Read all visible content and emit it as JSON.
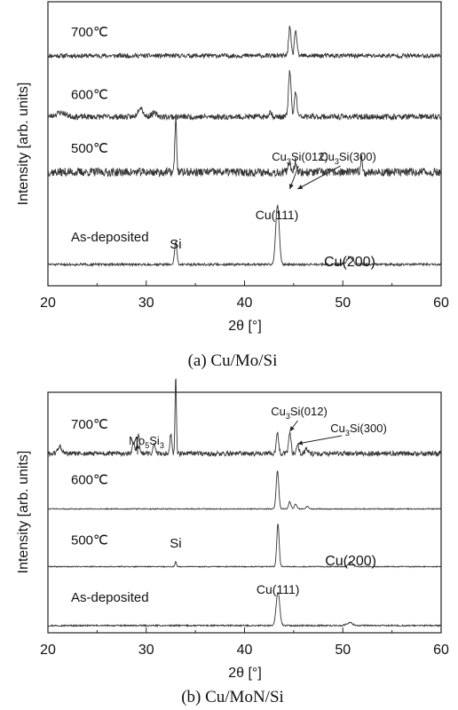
{
  "chart_data": [
    {
      "type": "line",
      "caption": "(a) Cu/Mo/Si",
      "xlabel": "2θ [°]",
      "ylabel": "Intensity [arb. units]",
      "xlim": [
        20,
        60
      ],
      "xticks": [
        "20",
        "30",
        "40",
        "50",
        "60"
      ],
      "series": [
        {
          "name": "700℃",
          "baseline": 0.81,
          "noise": 0.008,
          "seed": 11,
          "peaks": [
            [
              44.6,
              0.1,
              0.12
            ],
            [
              45.2,
              0.09,
              0.12
            ]
          ]
        },
        {
          "name": "600℃",
          "baseline": 0.595,
          "noise": 0.01,
          "seed": 23,
          "peaks": [
            [
              21.3,
              0.015,
              0.5
            ],
            [
              29.4,
              0.035,
              0.25
            ],
            [
              30.8,
              0.012,
              0.3
            ],
            [
              42.6,
              0.018,
              0.15
            ],
            [
              44.6,
              0.16,
              0.13
            ],
            [
              45.2,
              0.09,
              0.12
            ]
          ]
        },
        {
          "name": "500℃",
          "baseline": 0.4,
          "noise": 0.015,
          "seed": 37,
          "peaks": [
            [
              33.0,
              0.19,
              0.09
            ],
            [
              44.6,
              0.035,
              0.12
            ],
            [
              45.2,
              0.04,
              0.12
            ],
            [
              51.9,
              0.05,
              0.1
            ]
          ]
        },
        {
          "name": "As-deposited",
          "baseline": 0.075,
          "noise": 0.004,
          "seed": 51,
          "peaks": [
            [
              33.0,
              0.08,
              0.12
            ],
            [
              43.35,
              0.21,
              0.18
            ],
            [
              50.7,
              0.025,
              0.3
            ]
          ]
        }
      ],
      "annotations": [
        {
          "text": "Si",
          "x": 33.0
        },
        {
          "text": "Cu(111)",
          "x": 43.3
        },
        {
          "text": "Cu(200)",
          "x": 50.7
        },
        {
          "base": "Cu",
          "sub": "3",
          "rest": "Si(012)",
          "x": 44.6
        },
        {
          "base": "Cu",
          "sub": "3",
          "rest": "Si(300)",
          "x": 45.4
        }
      ]
    },
    {
      "type": "line",
      "caption": "(b) Cu/MoN/Si",
      "xlabel": "2θ [°]",
      "ylabel": "Intensity [arb. units]",
      "xlim": [
        20,
        60
      ],
      "xticks": [
        "20",
        "30",
        "40",
        "50",
        "60"
      ],
      "series": [
        {
          "name": "700℃",
          "baseline": 0.745,
          "noise": 0.01,
          "seed": 61,
          "peaks": [
            [
              21.2,
              0.03,
              0.2
            ],
            [
              28.7,
              0.04,
              0.12
            ],
            [
              29.2,
              0.08,
              0.12
            ],
            [
              30.8,
              0.04,
              0.12
            ],
            [
              32.5,
              0.08,
              0.1
            ],
            [
              33.0,
              0.32,
              0.07
            ],
            [
              43.35,
              0.09,
              0.12
            ],
            [
              44.6,
              0.09,
              0.12
            ],
            [
              45.4,
              0.04,
              0.12
            ],
            [
              46.3,
              0.02,
              0.15
            ]
          ]
        },
        {
          "name": "600℃",
          "baseline": 0.515,
          "noise": 0.002,
          "seed": 73,
          "peaks": [
            [
              43.35,
              0.16,
              0.13
            ],
            [
              44.6,
              0.03,
              0.12
            ],
            [
              45.2,
              0.02,
              0.12
            ],
            [
              46.4,
              0.01,
              0.15
            ]
          ]
        },
        {
          "name": "500℃",
          "baseline": 0.275,
          "noise": 0.002,
          "seed": 89,
          "peaks": [
            [
              33.0,
              0.02,
              0.08
            ],
            [
              43.4,
              0.18,
              0.12
            ],
            [
              50.8,
              0.02,
              0.2
            ]
          ]
        },
        {
          "name": "As-deposited",
          "baseline": 0.03,
          "noise": 0.003,
          "seed": 97,
          "peaks": [
            [
              43.4,
              0.14,
              0.18
            ],
            [
              50.7,
              0.012,
              0.3
            ]
          ]
        }
      ],
      "annotations": [
        {
          "base": "Mo",
          "sub": "5",
          "mid": "Si",
          "sub2": "3",
          "x": 29.2
        },
        {
          "text": "Si",
          "x": 33.0
        },
        {
          "text": "Cu(111)",
          "x": 43.4
        },
        {
          "text": "Cu(200)",
          "x": 50.8
        },
        {
          "base": "Cu",
          "sub": "3",
          "rest": "Si(012)",
          "x": 44.6
        },
        {
          "base": "Cu",
          "sub": "3",
          "rest": "Si(300)",
          "x": 45.4
        }
      ]
    }
  ]
}
